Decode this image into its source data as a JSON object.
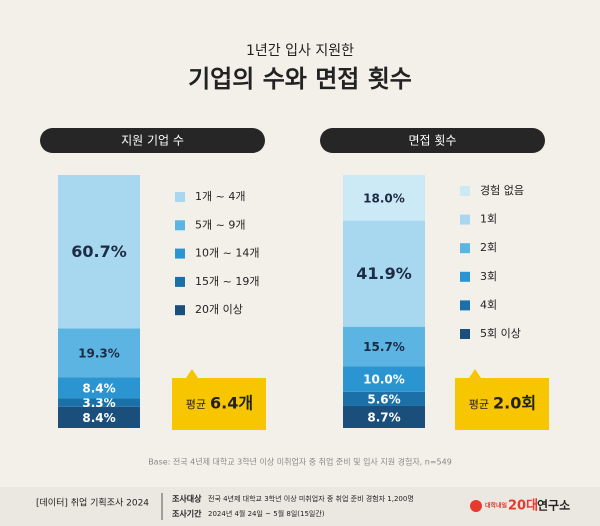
{
  "header": {
    "subtitle": "1년간 입사 지원한",
    "title": "기업의 수와 면접 횟수"
  },
  "chart_data": [
    {
      "type": "stacked_bar",
      "title": "지원 기업 수",
      "series": [
        {
          "name": "1개 ~ 4개",
          "color": "#a8d8f0",
          "values": [
            60.7
          ],
          "value_labels": [
            "60.7%"
          ]
        },
        {
          "name": "5개 ~ 9개",
          "color": "#5bb4e2",
          "values": [
            19.3
          ],
          "value_labels": [
            "19.3%"
          ]
        },
        {
          "name": "10개 ~ 14개",
          "color": "#2a95d0",
          "values": [
            8.4
          ],
          "value_labels": [
            "8.4%"
          ]
        },
        {
          "name": "15개 ~ 19개",
          "color": "#1b70a8",
          "values": [
            3.3
          ],
          "value_labels": [
            "3.3%"
          ]
        },
        {
          "name": "20개 이상",
          "color": "#1a4f7c",
          "values": [
            8.4
          ],
          "value_labels": [
            "8.4%"
          ]
        }
      ],
      "average_label": "평균",
      "average": 6.4,
      "average_value_label": "6.4개"
    },
    {
      "type": "stacked_bar",
      "title": "면접 횟수",
      "series": [
        {
          "name": "경험 없음",
          "color": "#cce9f6",
          "values": [
            18.0
          ],
          "value_labels": [
            "18.0%"
          ]
        },
        {
          "name": "1회",
          "color": "#a8d8f0",
          "values": [
            41.9
          ],
          "value_labels": [
            "41.9%"
          ]
        },
        {
          "name": "2회",
          "color": "#5bb4e2",
          "values": [
            15.7
          ],
          "value_labels": [
            "15.7%"
          ]
        },
        {
          "name": "3회",
          "color": "#2a95d0",
          "values": [
            10.0
          ],
          "value_labels": [
            "10.0%"
          ]
        },
        {
          "name": "4회",
          "color": "#1b70a8",
          "values": [
            5.6
          ],
          "value_labels": [
            "5.6%"
          ]
        },
        {
          "name": "5회 이상",
          "color": "#1a4f7c",
          "values": [
            8.7
          ],
          "value_labels": [
            "8.7%"
          ]
        }
      ],
      "average_label": "평균",
      "average": 2.0,
      "average_value_label": "2.0회"
    }
  ],
  "base_note": "Base: 전국 4년제 대학교 3학년 이상 미취업자 중 취업 준비 및 입사 지원 경험자, n=549",
  "footer": {
    "source": "[데이터] 취업 기획조사 2024",
    "target_label": "조사대상",
    "target": "전국 4년제 대학교 3학년 이상 미취업자 중 취업 준비 경험자 1,200명",
    "period_label": "조사기간",
    "period": "2024년 4월 24일 ~ 5월 8일(15일간)",
    "logo_small": "대학내일",
    "logo_num": "20대",
    "logo_text": "연구소"
  }
}
